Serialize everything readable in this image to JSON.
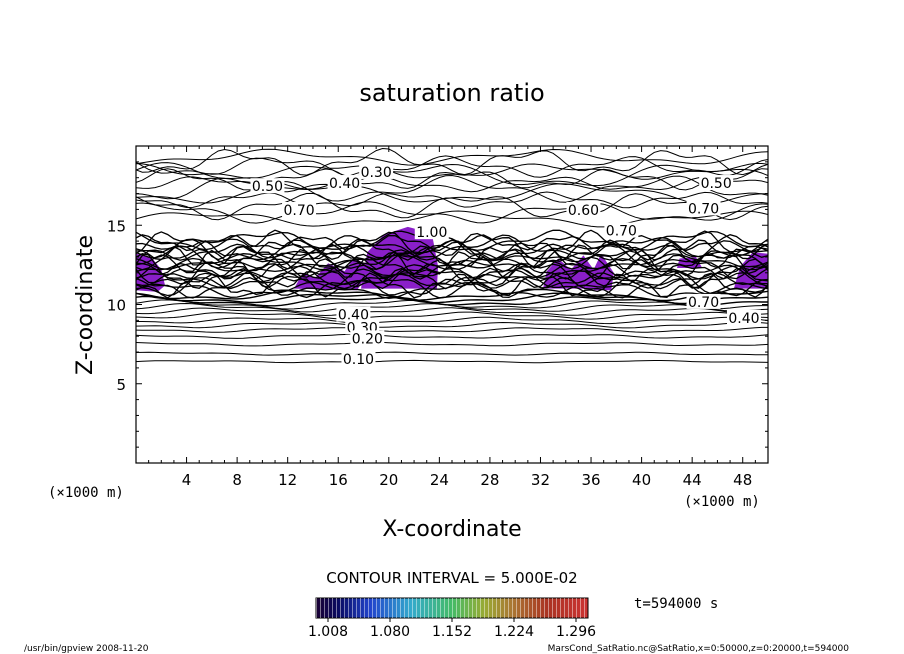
{
  "chart_data": {
    "type": "contour",
    "title": "saturation ratio",
    "xlabel": "X-coordinate",
    "ylabel": "Z-coordinate",
    "x_unit_left": "(×1000 m)",
    "x_unit_right": "(×1000 m)",
    "xlim": [
      0,
      50
    ],
    "ylim": [
      0,
      20
    ],
    "x_ticks": [
      "4",
      "8",
      "12",
      "16",
      "20",
      "24",
      "28",
      "32",
      "36",
      "40",
      "44",
      "48"
    ],
    "x_tick_values": [
      4,
      8,
      12,
      16,
      20,
      24,
      28,
      32,
      36,
      40,
      44,
      48
    ],
    "y_ticks": [
      "5",
      "10",
      "15"
    ],
    "y_tick_values": [
      5,
      10,
      15
    ],
    "contour_labels": [
      {
        "text": "0.30",
        "x": 19,
        "z": 18.3
      },
      {
        "text": "0.40",
        "x": 16.5,
        "z": 17.6
      },
      {
        "text": "0.50",
        "x": 10.4,
        "z": 17.4
      },
      {
        "text": "0.50",
        "x": 45.9,
        "z": 17.6
      },
      {
        "text": "0.70",
        "x": 12.9,
        "z": 15.9
      },
      {
        "text": "0.60",
        "x": 35.4,
        "z": 15.9
      },
      {
        "text": "0.70",
        "x": 44.9,
        "z": 16
      },
      {
        "text": "1.00",
        "x": 23.4,
        "z": 14.5
      },
      {
        "text": "0.70",
        "x": 38.4,
        "z": 14.6
      },
      {
        "text": "0.70",
        "x": 44.9,
        "z": 10.1
      },
      {
        "text": "0.40",
        "x": 48.1,
        "z": 9.1
      },
      {
        "text": "0.40",
        "x": 17.2,
        "z": 9.3
      },
      {
        "text": "0.30",
        "x": 17.9,
        "z": 8.5
      },
      {
        "text": "0.20",
        "x": 18.3,
        "z": 7.8
      },
      {
        "text": "0.10",
        "x": 17.6,
        "z": 6.5
      }
    ],
    "contour_interval_label": "CONTOUR INTERVAL = 5.000E-02",
    "colorbar_ticks": [
      "1.008",
      "1.080",
      "1.152",
      "1.224",
      "1.296"
    ],
    "time_label": "t=594000 s",
    "fill_color": "#8a1fc9"
  },
  "footer": {
    "left": "/usr/bin/gpview   2008-11-20",
    "right": "MarsCond_SatRatio.nc@SatRatio,x=0:50000,z=0:20000,t=594000"
  }
}
